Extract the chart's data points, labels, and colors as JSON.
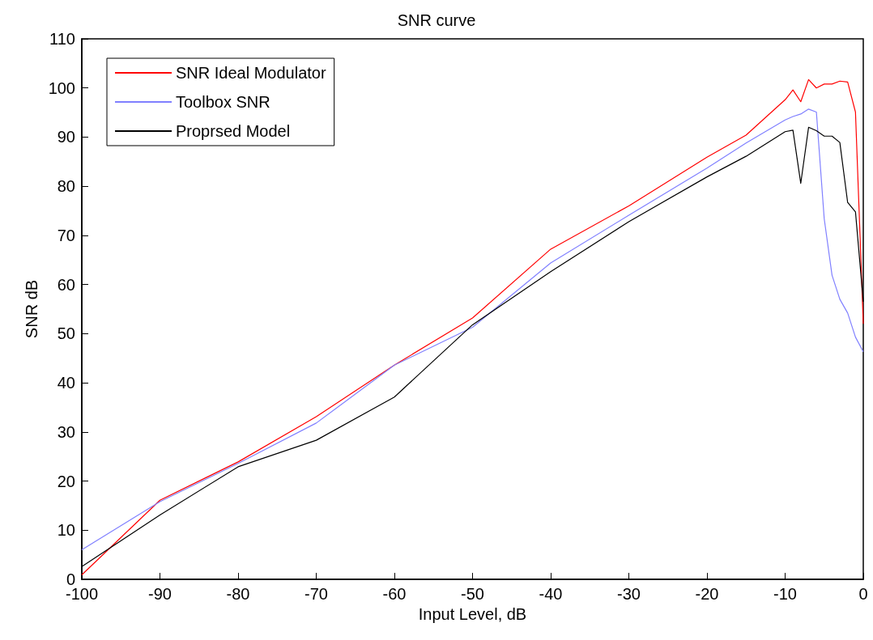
{
  "chart_data": {
    "type": "line",
    "title": "SNR curve",
    "xlabel": "Input Level, dB",
    "ylabel": "SNR dB",
    "x": [
      -100,
      -90,
      -80,
      -70,
      -60,
      -50,
      -40,
      -30,
      -20,
      -15,
      -10,
      -9,
      -8,
      -7,
      -6,
      -5,
      -4,
      -3,
      -2,
      -1,
      0
    ],
    "series": [
      {
        "name": "SNR Ideal Modulator",
        "color": "#ff0000",
        "values": [
          0.9,
          16.1,
          23.9,
          33.1,
          43.6,
          53.2,
          67.2,
          76.0,
          85.9,
          90.4,
          97.6,
          99.6,
          97.2,
          101.7,
          100.0,
          100.8,
          100.8,
          101.4,
          101.2,
          95.1,
          52
        ]
      },
      {
        "name": "Toolbox SNR",
        "color": "#8080ff",
        "values": [
          6.0,
          15.8,
          23.6,
          31.8,
          43.6,
          51.3,
          64.4,
          74.1,
          83.7,
          88.8,
          93.5,
          94.2,
          94.7,
          95.7,
          95.1,
          73.4,
          61.9,
          57.0,
          54.2,
          49.3,
          46.3
        ]
      },
      {
        "name": "Proprsed Model",
        "color": "#000000",
        "values": [
          2.6,
          13.1,
          22.9,
          28.3,
          37.1,
          51.8,
          62.6,
          72.8,
          81.9,
          86.1,
          91.1,
          91.4,
          80.6,
          92.0,
          91.3,
          90.2,
          90.2,
          88.9,
          76.7,
          74.8,
          56.5
        ]
      }
    ],
    "xlim": [
      -100,
      0
    ],
    "xticks": [
      -100,
      -90,
      -80,
      -70,
      -60,
      -50,
      -40,
      -30,
      -20,
      -10,
      0
    ],
    "ylim": [
      0,
      110
    ],
    "yticks": [
      0,
      10,
      20,
      30,
      40,
      50,
      60,
      70,
      80,
      90,
      100,
      110
    ],
    "grid": false,
    "legend": "top left",
    "marker": "none",
    "line_style": "solid"
  }
}
